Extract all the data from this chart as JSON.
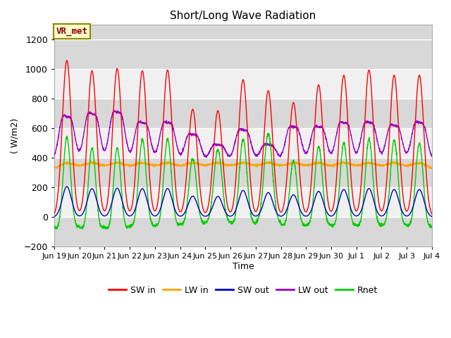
{
  "title": "Short/Long Wave Radiation",
  "xlabel": "Time",
  "ylabel": "( W/m2)",
  "ylim": [
    -200,
    1300
  ],
  "yticks": [
    -200,
    0,
    200,
    400,
    600,
    800,
    1000,
    1200
  ],
  "annotation_text": "VR_met",
  "annotation_color": "#8B0000",
  "annotation_bg": "#FFFFCC",
  "annotation_border": "#8B8B00",
  "plot_bg_dark": "#D8D8D8",
  "plot_bg_light": "#F0F0F0",
  "grid_color": "#FFFFFF",
  "series": {
    "SW_in": {
      "color": "#FF0000",
      "label": "SW in"
    },
    "LW_in": {
      "color": "#FFA500",
      "label": "LW in"
    },
    "SW_out": {
      "color": "#0000CC",
      "label": "SW out"
    },
    "LW_out": {
      "color": "#9900CC",
      "label": "LW out"
    },
    "Rnet": {
      "color": "#00CC00",
      "label": "Rnet"
    }
  },
  "x_tick_labels": [
    "Jun 19",
    "Jun 20",
    "Jun 21",
    "Jun 22",
    "Jun 23",
    "Jun 24",
    "Jun 25",
    "Jun 26",
    "Jun 27",
    "Jun 28",
    "Jun 29",
    "Jun 30",
    "Jul 1",
    "Jul 2",
    "Jul 3",
    "Jul 4"
  ],
  "days": 15,
  "pts_per_day": 144,
  "sw_in_peaks": [
    1060,
    990,
    1005,
    990,
    995,
    730,
    720,
    930,
    855,
    775,
    895,
    960,
    995,
    960,
    960
  ],
  "lw_out_day_peaks": [
    680,
    700,
    710,
    640,
    640,
    560,
    490,
    590,
    490,
    610,
    610,
    640,
    640,
    620,
    640
  ]
}
